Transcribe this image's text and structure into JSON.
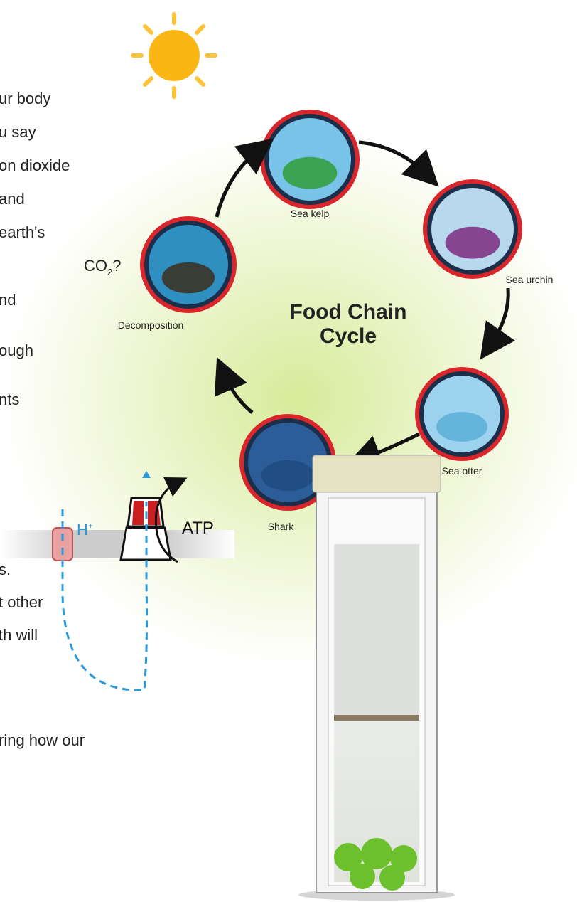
{
  "text_fragments": [
    "ur body",
    "u say",
    "on dioxide",
    "and",
    "earth's",
    "nd",
    "ough",
    "nts",
    "s.",
    "t other",
    "th will",
    "ring how our"
  ],
  "co2_line": {
    "main": "CO",
    "sub": "2",
    "suffix": "?"
  },
  "food_chain": {
    "title_line1": "Food Chain",
    "title_line2": "Cycle",
    "nodes": [
      {
        "label": "Sea kelp"
      },
      {
        "label": "Sea urchin"
      },
      {
        "label": "Sea otter"
      },
      {
        "label": "Shark"
      },
      {
        "label": "Decomposition"
      }
    ]
  },
  "atp_diagram": {
    "proton": "H",
    "proton_charge": "+",
    "product": "ATP"
  }
}
